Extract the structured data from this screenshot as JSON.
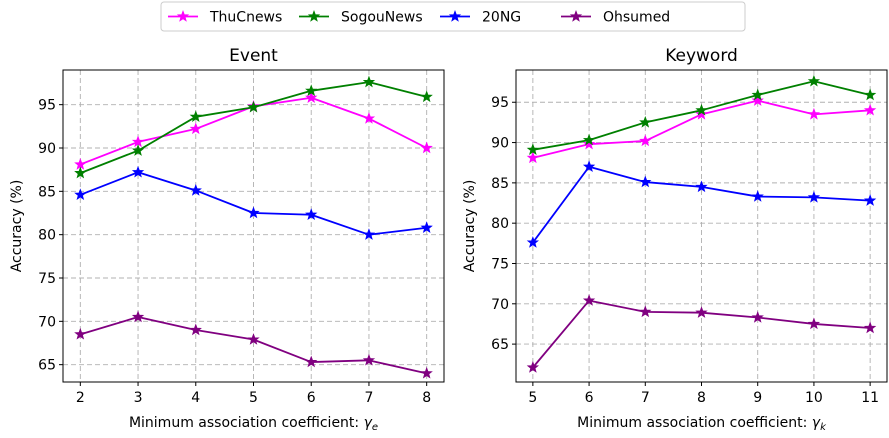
{
  "chart_data": [
    {
      "type": "line",
      "title": "Event",
      "xlabel": "Minimum association coefficient: ",
      "xlabel_symbol": "γ",
      "xlabel_subscript": "e",
      "ylabel": "Accuracy (%)",
      "x": [
        2,
        3,
        4,
        5,
        6,
        7,
        8
      ],
      "xlim": [
        1.7,
        8.3
      ],
      "ylim": [
        63,
        99
      ],
      "yticks": [
        65,
        70,
        75,
        80,
        85,
        90,
        95
      ],
      "grid": true,
      "series": [
        {
          "name": "ThuCnews",
          "color": "#ff00ff",
          "values": [
            88.1,
            90.7,
            92.2,
            94.8,
            95.8,
            93.4,
            90.0
          ]
        },
        {
          "name": "SogouNews",
          "color": "#008000",
          "values": [
            87.1,
            89.7,
            93.6,
            94.7,
            96.6,
            97.6,
            95.9
          ]
        },
        {
          "name": "20NG",
          "color": "#0000ff",
          "values": [
            84.6,
            87.2,
            85.1,
            82.5,
            82.3,
            80.0,
            80.8
          ]
        },
        {
          "name": "Ohsumed",
          "color": "#800080",
          "values": [
            68.5,
            70.5,
            69.0,
            67.9,
            65.3,
            65.5,
            64.0
          ]
        }
      ]
    },
    {
      "type": "line",
      "title": "Keyword",
      "xlabel": "Minimum association coefficient: ",
      "xlabel_symbol": "γ",
      "xlabel_subscript": "k",
      "ylabel": "Accuracy (%)",
      "x": [
        5,
        6,
        7,
        8,
        9,
        10,
        11
      ],
      "xlim": [
        4.7,
        11.3
      ],
      "ylim": [
        60.3,
        99
      ],
      "yticks": [
        65,
        70,
        75,
        80,
        85,
        90,
        95
      ],
      "grid": true,
      "series": [
        {
          "name": "ThuCnews",
          "color": "#ff00ff",
          "values": [
            88.1,
            89.8,
            90.2,
            93.5,
            95.2,
            93.5,
            94.0
          ]
        },
        {
          "name": "SogouNews",
          "color": "#008000",
          "values": [
            89.1,
            90.3,
            92.5,
            94.0,
            95.9,
            97.6,
            95.9
          ]
        },
        {
          "name": "20NG",
          "color": "#0000ff",
          "values": [
            77.6,
            87.0,
            85.1,
            84.5,
            83.3,
            83.2,
            82.8
          ]
        },
        {
          "name": "Ohsumed",
          "color": "#800080",
          "values": [
            62.1,
            70.4,
            69.0,
            68.9,
            68.3,
            67.5,
            67.0
          ]
        }
      ]
    }
  ],
  "legend": {
    "placement": "top-center",
    "entries": [
      {
        "name": "ThuCnews",
        "color": "#ff00ff"
      },
      {
        "name": "SogouNews",
        "color": "#008000"
      },
      {
        "name": "20NG",
        "color": "#0000ff"
      },
      {
        "name": "Ohsumed",
        "color": "#800080"
      }
    ]
  }
}
